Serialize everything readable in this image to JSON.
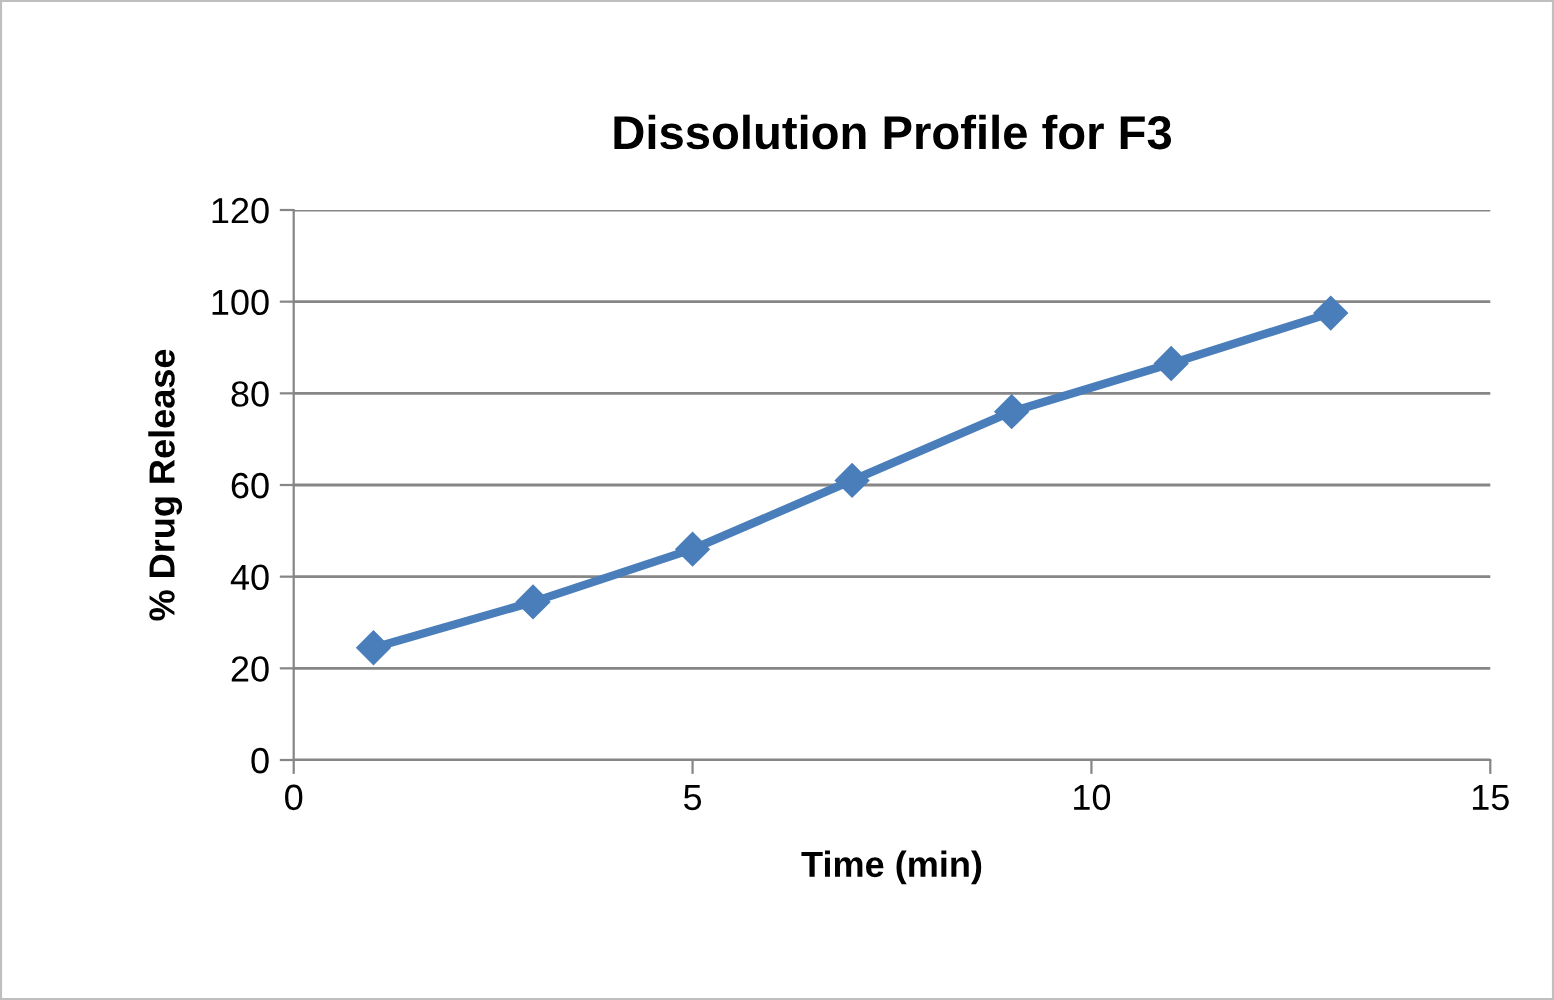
{
  "chart_data": {
    "type": "line",
    "title": "Dissolution Profile for F3",
    "xlabel": "Time (min)",
    "ylabel": "% Drug Release",
    "x": [
      1,
      3,
      5,
      7,
      9,
      11,
      13
    ],
    "series": [
      {
        "color": "#4a7ebb",
        "values": [
          24.5,
          34.5,
          46,
          61,
          76,
          86.5,
          97.5
        ]
      }
    ],
    "xlim": [
      0,
      15
    ],
    "xticks": [
      0,
      5,
      10,
      15
    ],
    "ylim": [
      0,
      120
    ],
    "yticks": [
      0,
      20,
      40,
      60,
      80,
      100,
      120
    ],
    "grid": "y",
    "marker": "diamond",
    "line_style": "solid"
  }
}
